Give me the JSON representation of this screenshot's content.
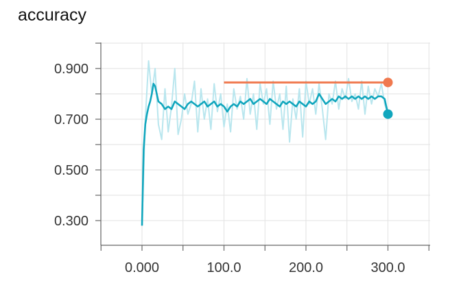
{
  "chart_data": {
    "type": "line",
    "title": "accuracy",
    "xlabel": "",
    "ylabel": "",
    "xlim": [
      -100,
      350
    ],
    "ylim": [
      0.2,
      1.0
    ],
    "x_ticks": [
      "0.000",
      "100.0",
      "200.0",
      "300.0"
    ],
    "y_ticks": [
      "0.900",
      "0.700",
      "0.500",
      "0.300"
    ],
    "grid": true,
    "colors": {
      "smoothed": "#11a6bd",
      "raw": "#b9e6ee",
      "reference": "#f0794f"
    },
    "series": [
      {
        "role": "raw",
        "x": [
          0,
          4,
          8,
          12,
          16,
          20,
          24,
          28,
          32,
          36,
          40,
          44,
          48,
          52,
          56,
          60,
          64,
          68,
          72,
          76,
          80,
          84,
          88,
          92,
          96,
          100,
          104,
          108,
          112,
          116,
          120,
          124,
          128,
          132,
          136,
          140,
          144,
          148,
          152,
          156,
          160,
          164,
          168,
          172,
          176,
          180,
          184,
          188,
          192,
          196,
          200,
          204,
          208,
          212,
          216,
          220,
          224,
          228,
          232,
          236,
          240,
          244,
          248,
          252,
          256,
          260,
          264,
          268,
          272,
          276,
          280,
          284,
          288,
          292,
          296,
          300
        ],
        "y": [
          0.28,
          0.7,
          0.93,
          0.8,
          0.9,
          0.68,
          0.62,
          0.82,
          0.65,
          0.75,
          0.9,
          0.64,
          0.7,
          0.8,
          0.72,
          0.76,
          0.85,
          0.65,
          0.82,
          0.7,
          0.78,
          0.66,
          0.84,
          0.73,
          0.8,
          0.67,
          0.76,
          0.65,
          0.82,
          0.74,
          0.79,
          0.7,
          0.86,
          0.72,
          0.8,
          0.66,
          0.84,
          0.76,
          0.82,
          0.68,
          0.85,
          0.74,
          0.8,
          0.66,
          0.83,
          0.61,
          0.78,
          0.7,
          0.82,
          0.63,
          0.85,
          0.76,
          0.82,
          0.72,
          0.84,
          0.74,
          0.62,
          0.8,
          0.76,
          0.85,
          0.74,
          0.82,
          0.78,
          0.86,
          0.77,
          0.8,
          0.74,
          0.85,
          0.72,
          0.83,
          0.76,
          0.82,
          0.79,
          0.84,
          0.76,
          0.72
        ]
      },
      {
        "role": "smoothed",
        "x": [
          0,
          2,
          4,
          6,
          8,
          10,
          12,
          14,
          16,
          18,
          20,
          24,
          28,
          32,
          36,
          40,
          44,
          48,
          52,
          56,
          60,
          64,
          68,
          72,
          76,
          80,
          84,
          88,
          92,
          96,
          100,
          104,
          108,
          112,
          116,
          120,
          124,
          128,
          132,
          136,
          140,
          144,
          148,
          152,
          156,
          160,
          164,
          168,
          172,
          176,
          180,
          184,
          188,
          192,
          196,
          200,
          204,
          208,
          212,
          216,
          220,
          224,
          228,
          232,
          236,
          240,
          244,
          248,
          252,
          256,
          260,
          264,
          268,
          272,
          276,
          280,
          284,
          288,
          292,
          296,
          300
        ],
        "y": [
          0.28,
          0.58,
          0.68,
          0.72,
          0.75,
          0.77,
          0.8,
          0.84,
          0.83,
          0.8,
          0.77,
          0.76,
          0.74,
          0.75,
          0.74,
          0.77,
          0.76,
          0.75,
          0.74,
          0.76,
          0.77,
          0.76,
          0.75,
          0.76,
          0.77,
          0.75,
          0.76,
          0.77,
          0.75,
          0.76,
          0.75,
          0.73,
          0.75,
          0.76,
          0.75,
          0.77,
          0.76,
          0.77,
          0.78,
          0.76,
          0.77,
          0.78,
          0.77,
          0.76,
          0.78,
          0.77,
          0.76,
          0.75,
          0.77,
          0.76,
          0.77,
          0.76,
          0.75,
          0.77,
          0.76,
          0.75,
          0.77,
          0.76,
          0.77,
          0.8,
          0.78,
          0.76,
          0.77,
          0.78,
          0.77,
          0.79,
          0.78,
          0.79,
          0.78,
          0.79,
          0.78,
          0.79,
          0.78,
          0.79,
          0.78,
          0.79,
          0.78,
          0.79,
          0.79,
          0.78,
          0.72
        ]
      },
      {
        "role": "reference",
        "x": [
          100,
          300
        ],
        "y": [
          0.845,
          0.845
        ]
      }
    ]
  }
}
